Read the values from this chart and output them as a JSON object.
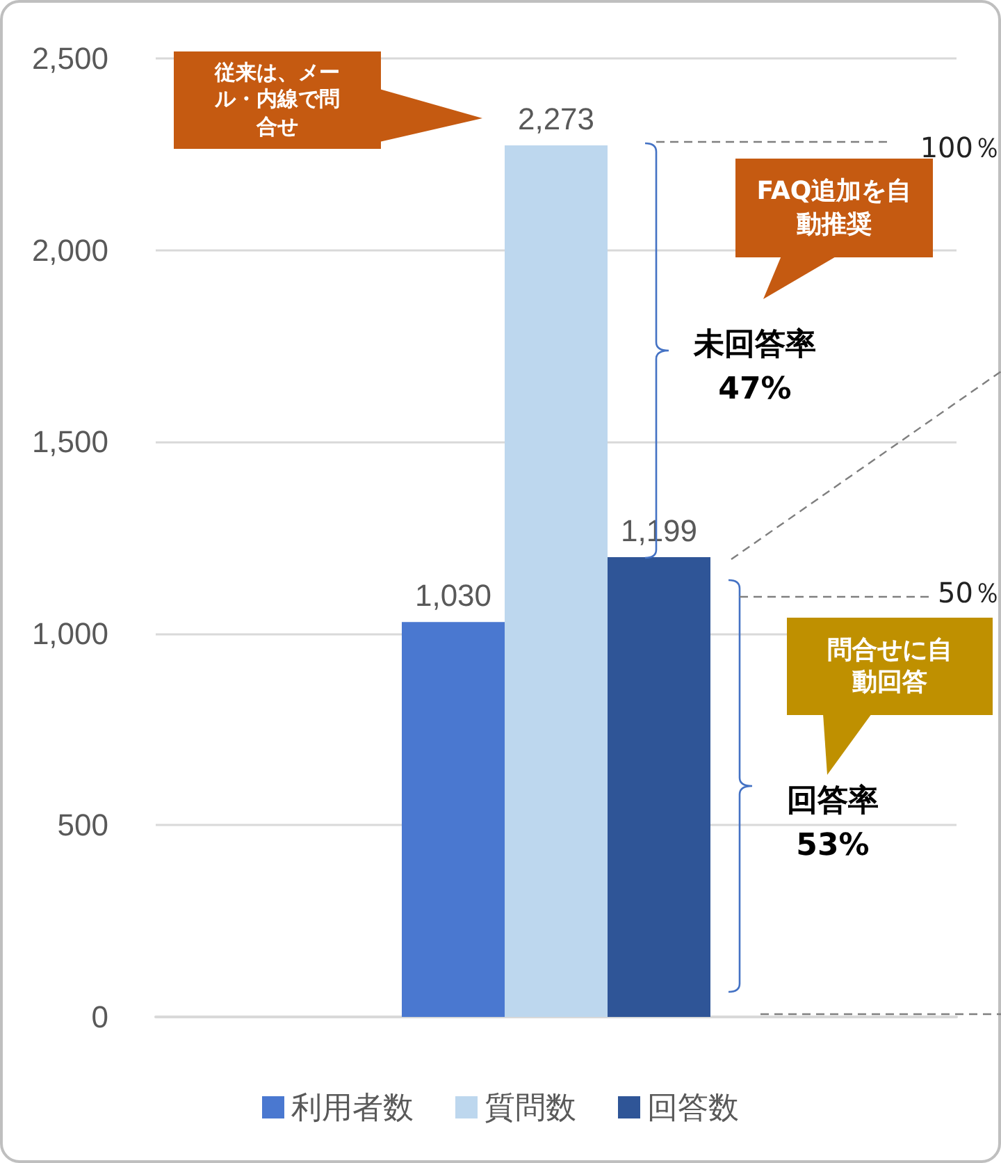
{
  "chart_data": {
    "type": "bar",
    "categories": [
      null
    ],
    "series": [
      {
        "name": "利用者数",
        "color": "#4a78d0",
        "values": [
          1030
        ],
        "value_labels": [
          "1,030"
        ]
      },
      {
        "name": "質問数",
        "color": "#bdd7ee",
        "values": [
          2273
        ],
        "value_labels": [
          "2,273"
        ]
      },
      {
        "name": "回答数",
        "color": "#2f5597",
        "values": [
          1199
        ],
        "value_labels": [
          "1,199"
        ]
      }
    ],
    "ylim": [
      0,
      2500
    ],
    "yticks": [
      0,
      500,
      {
        "value": 1000,
        "label": "1,000"
      },
      {
        "value": 1500,
        "label": "1,500"
      },
      {
        "value": 2000,
        "label": "2,000"
      },
      {
        "value": 2500,
        "label": "2,500"
      }
    ],
    "grid": "y",
    "legend": "bottom",
    "annotations": [
      "従来は、メール・内線で問合せ",
      "FAQ追加を自動推奨",
      "問合せに自動回答",
      "未回答率\n47%",
      "回答率\n53%",
      "100％",
      "50％"
    ]
  }
}
